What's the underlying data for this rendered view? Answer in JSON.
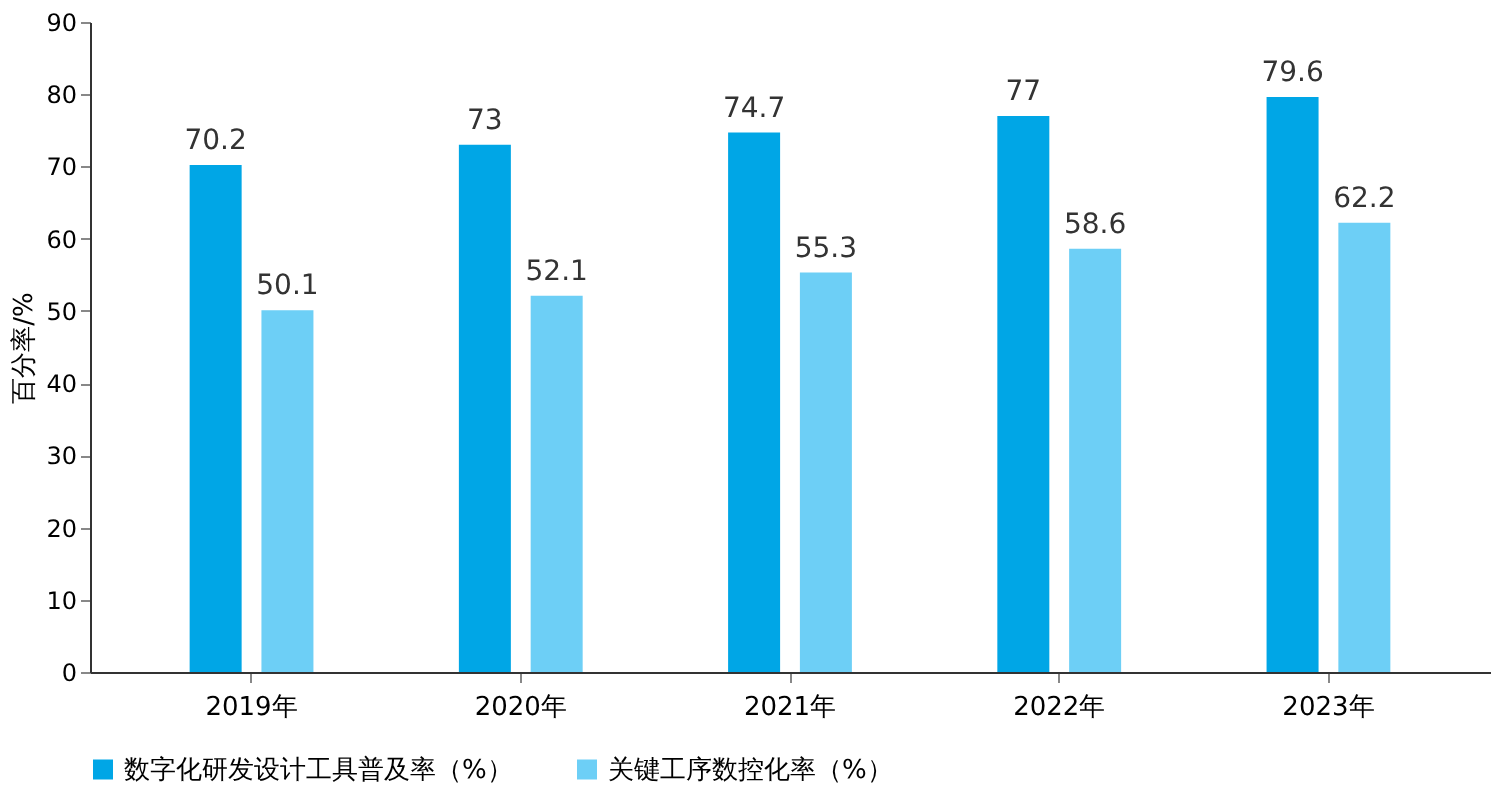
{
  "chart_data": {
    "type": "bar",
    "ylabel": "百分率/%",
    "categories": [
      "2019年",
      "2020年",
      "2021年",
      "2022年",
      "2023年"
    ],
    "series": [
      {
        "name": "数字化研发设计工具普及率（%）",
        "color": "#00a6e6",
        "values": [
          70.2,
          73,
          74.7,
          77,
          79.6
        ]
      },
      {
        "name": "关键工序数控化率（%）",
        "color": "#6dcff6",
        "values": [
          50.1,
          52.1,
          55.3,
          58.6,
          62.2
        ]
      }
    ],
    "ylim": [
      0,
      90
    ],
    "yticks": [
      0,
      10,
      20,
      30,
      40,
      50,
      60,
      70,
      80,
      90
    ],
    "grid": false,
    "legend": "bottom",
    "data_labels": true
  }
}
